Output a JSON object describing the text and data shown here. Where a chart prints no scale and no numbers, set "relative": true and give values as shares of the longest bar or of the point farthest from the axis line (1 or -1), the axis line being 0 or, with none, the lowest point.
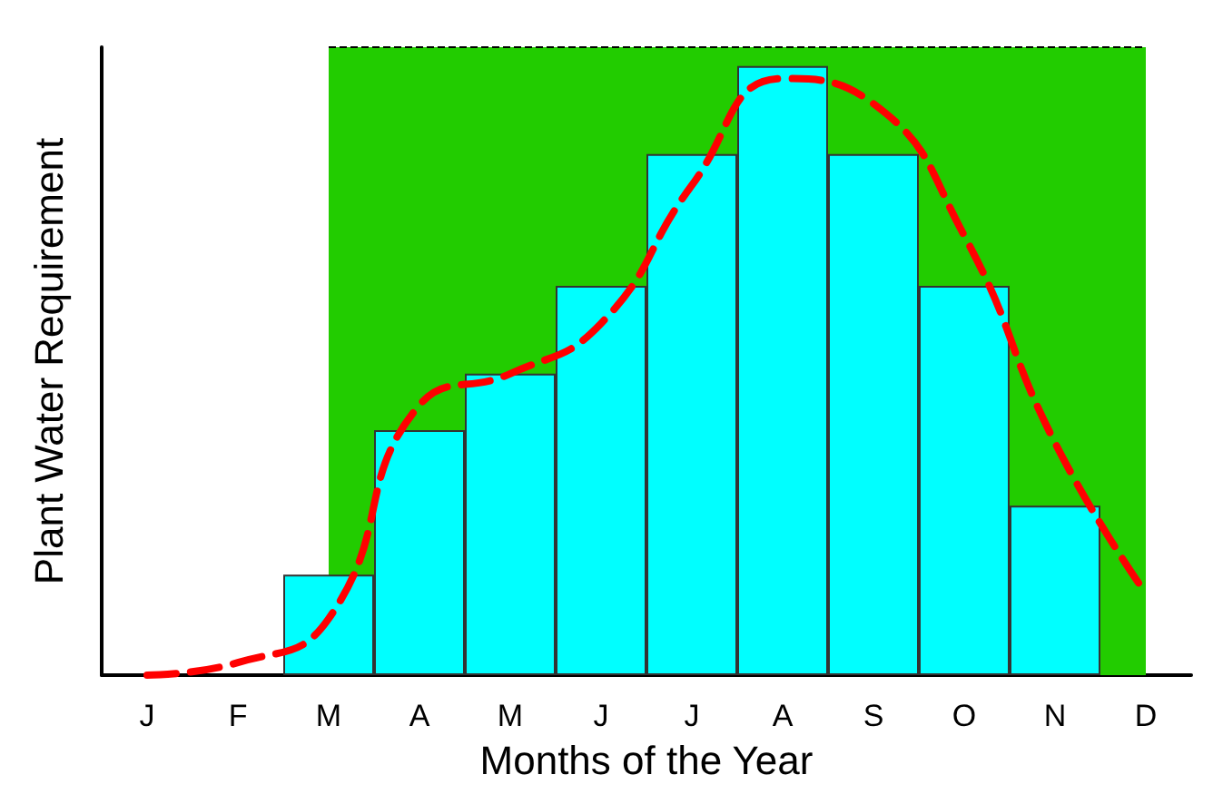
{
  "chart_data": {
    "type": "bar",
    "relative": true,
    "xlabel": "Months of the Year",
    "ylabel": "Plant Water Requirement",
    "categories": [
      "J",
      "F",
      "M",
      "A",
      "M",
      "J",
      "J",
      "A",
      "S",
      "O",
      "N",
      "D"
    ],
    "grid": false,
    "series": [
      {
        "type": "area",
        "color": "#22cc00",
        "line_style": "dashed",
        "values": [
          null,
          null,
          1,
          1,
          1,
          1,
          1,
          1,
          1,
          1,
          1,
          1
        ]
      },
      {
        "color": "#00ffff",
        "values": [
          null,
          null,
          0.16,
          0.39,
          0.48,
          0.62,
          0.83,
          0.97,
          0.83,
          0.62,
          0.27,
          null
        ]
      },
      {
        "type": "line",
        "color": "#ff0000",
        "line_style": "dashed",
        "marker": "none",
        "values": [
          0.0,
          0.02,
          0.09,
          0.43,
          0.48,
          0.56,
          0.78,
          0.95,
          0.91,
          0.7,
          0.37,
          0.13
        ]
      }
    ]
  }
}
